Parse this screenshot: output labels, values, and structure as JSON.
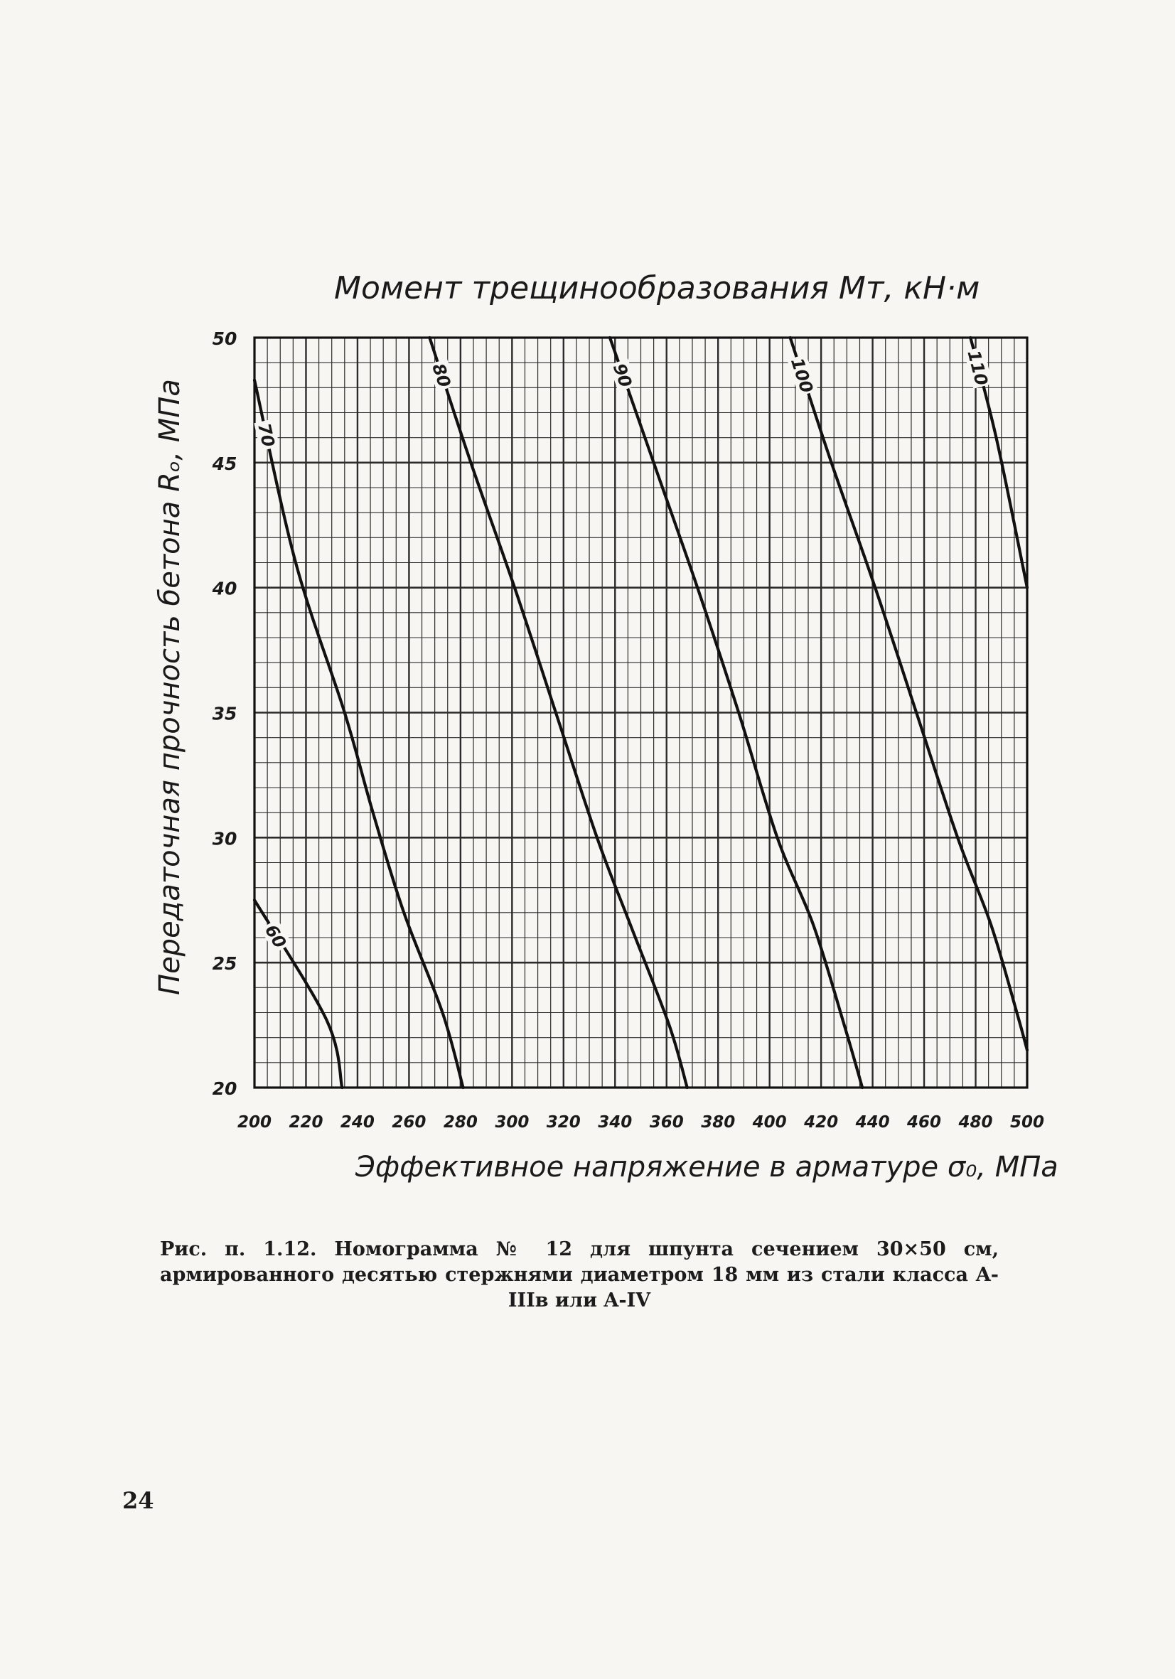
{
  "chart_data": {
    "type": "line",
    "title": "Момент трещинообразования Mт, кН·м",
    "xlabel": "Эффективное напряжение в арматуре σ₀, МПа",
    "ylabel": "Передаточная прочность бетона Rₒ, МПа",
    "x_ticks": [
      "200",
      "220",
      "240",
      "260",
      "280",
      "300",
      "320",
      "340",
      "360",
      "380",
      "400",
      "420",
      "440",
      "460",
      "480",
      "500"
    ],
    "y_ticks": [
      "20",
      "25",
      "30",
      "35",
      "40",
      "45",
      "50"
    ],
    "xlim": [
      200,
      500
    ],
    "ylim": [
      20,
      50
    ],
    "grid": true,
    "series": [
      {
        "name": "60",
        "points": [
          [
            200,
            27.5
          ],
          [
            228,
            22.7
          ],
          [
            234,
            20
          ]
        ]
      },
      {
        "name": "70",
        "points": [
          [
            200,
            48.3
          ],
          [
            216,
            41
          ],
          [
            235,
            35
          ],
          [
            246,
            31
          ],
          [
            258,
            27
          ],
          [
            273,
            23
          ],
          [
            281,
            20
          ]
        ]
      },
      {
        "name": "80",
        "points": [
          [
            268,
            50
          ],
          [
            284,
            45
          ],
          [
            301,
            40
          ],
          [
            317,
            35
          ],
          [
            333,
            30
          ],
          [
            346,
            26.5
          ],
          [
            361,
            22.5
          ],
          [
            368,
            20
          ]
        ]
      },
      {
        "name": "90",
        "points": [
          [
            338,
            50
          ],
          [
            355,
            45
          ],
          [
            372,
            40
          ],
          [
            388,
            35
          ],
          [
            403,
            30
          ],
          [
            417,
            26.5
          ],
          [
            429,
            22.5
          ],
          [
            436,
            20
          ]
        ]
      },
      {
        "name": "100",
        "points": [
          [
            408,
            50
          ],
          [
            424,
            45
          ],
          [
            441,
            40
          ],
          [
            457,
            35
          ],
          [
            473,
            30
          ],
          [
            486,
            26.5
          ],
          [
            496,
            23
          ],
          [
            500,
            21.5
          ]
        ]
      },
      {
        "name": "110",
        "points": [
          [
            478,
            50
          ],
          [
            488,
            46
          ],
          [
            500,
            40
          ]
        ]
      }
    ]
  },
  "caption": "Рис. п. 1.12. Номограмма № 12 для шпунта сечением 30×50 см, армированного десятью стержнями диаметром 18 мм из стали класса A-IIIв или A-IV",
  "page_number": "24"
}
